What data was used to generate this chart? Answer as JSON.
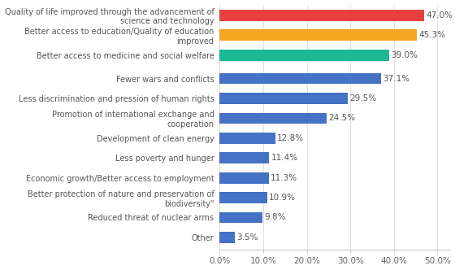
{
  "categories": [
    "Other",
    "Reduced threat of nuclear arms",
    "Better protection of nature and preservation of\nbiodiversity\"",
    "Economic growth/Better access to employment",
    "Less poverty and hunger",
    "Development of clean energy",
    "Promotion of international exchange and\ncooperation",
    "Less discrimination and pression of human rights",
    "Fewer wars and conflicts",
    "Better access to medicine and social welfare",
    "Better access to education/Quality of education\nimproved",
    "Quality of life improved through the advancement of\nscience and technology"
  ],
  "values": [
    3.5,
    9.8,
    10.9,
    11.3,
    11.4,
    12.8,
    24.5,
    29.5,
    37.1,
    39.0,
    45.3,
    47.0
  ],
  "bar_colors": [
    "#4472c4",
    "#4472c4",
    "#4472c4",
    "#4472c4",
    "#4472c4",
    "#4472c4",
    "#4472c4",
    "#4472c4",
    "#4472c4",
    "#1db894",
    "#f5a623",
    "#e84040"
  ],
  "value_labels": [
    "3.5%",
    "9.8%",
    "10.9%",
    "11.3%",
    "11.4%",
    "12.8%",
    "24.5%",
    "29.5%",
    "37.1%",
    "39.0%",
    "45.3%",
    "47.0%"
  ],
  "xlim": [
    0,
    53
  ],
  "xticks": [
    0,
    10,
    20,
    30,
    40,
    50
  ],
  "xticklabels": [
    "0.0%",
    "10.0%",
    "20.0%",
    "30.0%",
    "40.0%",
    "50.0%"
  ],
  "background_color": "#ffffff",
  "bar_height": 0.62,
  "label_fontsize": 7.0,
  "value_fontsize": 7.5,
  "tick_fontsize": 7.5,
  "grid_color": "#e0e0e0"
}
